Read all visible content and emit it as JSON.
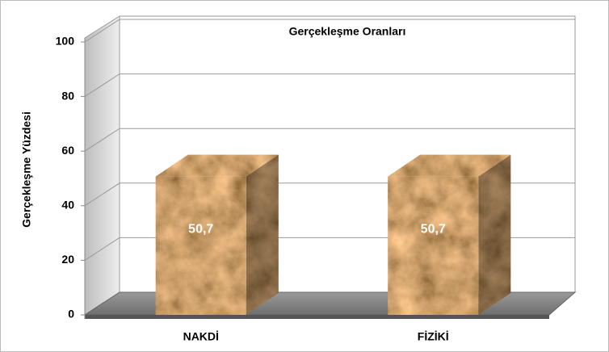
{
  "chart_data": {
    "type": "bar3d",
    "title": "Gerçekleşme Oranları",
    "y_label": "Gerçekleşme Yüzdesi",
    "categories": [
      "NAKDİ",
      "FİZİKİ"
    ],
    "values": [
      50.7,
      50.7
    ],
    "value_labels": [
      "50,7",
      "50,7"
    ],
    "ylim": [
      0,
      100
    ],
    "yticks": [
      0,
      20,
      40,
      60,
      80,
      100
    ],
    "grid": true
  }
}
